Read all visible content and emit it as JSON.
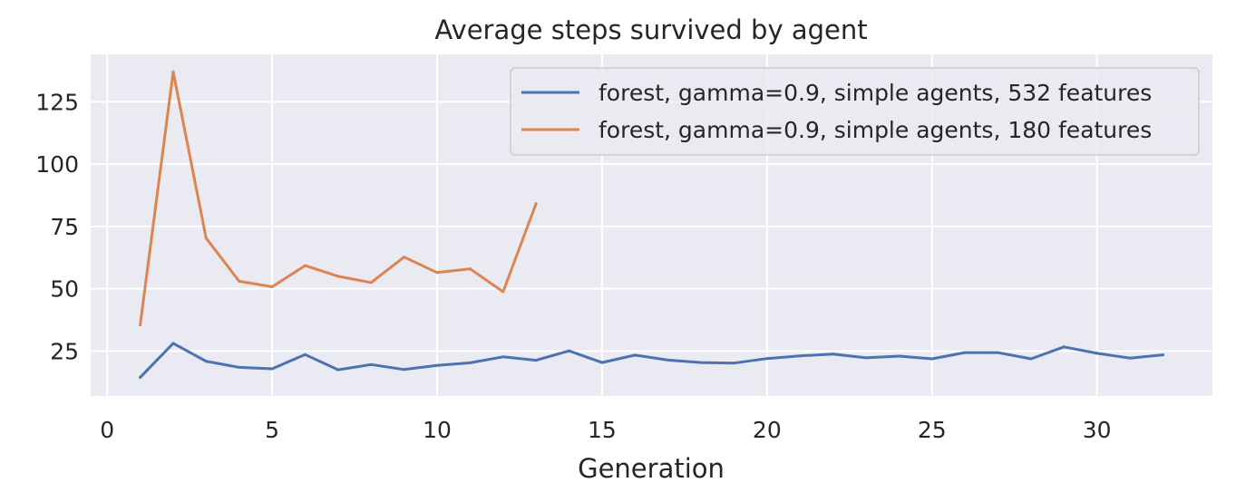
{
  "chart_data": {
    "type": "line",
    "title": "Average steps survived by agent",
    "xlabel": "Generation",
    "ylabel": "",
    "xlim": [
      -0.5,
      33.5
    ],
    "ylim": [
      7,
      144
    ],
    "xticks": [
      0,
      5,
      10,
      15,
      20,
      25,
      30
    ],
    "yticks": [
      25,
      50,
      75,
      100,
      125
    ],
    "grid": true,
    "legend_position": "top-right",
    "series": [
      {
        "name": "forest, gamma=0.9, simple agents, 532 features",
        "color": "#4c72b0",
        "x": [
          1,
          2,
          3,
          4,
          5,
          6,
          7,
          8,
          9,
          10,
          11,
          12,
          13,
          14,
          15,
          16,
          17,
          18,
          19,
          20,
          21,
          22,
          23,
          24,
          25,
          26,
          27,
          28,
          29,
          30,
          31,
          32
        ],
        "values": [
          14.5,
          28.1,
          20.9,
          18.5,
          17.9,
          23.6,
          17.5,
          19.6,
          17.6,
          19.3,
          20.3,
          22.7,
          21.3,
          25.1,
          20.4,
          23.4,
          21.4,
          20.4,
          20.2,
          22.0,
          23.1,
          23.8,
          22.3,
          23.0,
          21.9,
          24.4,
          24.4,
          21.9,
          26.7,
          24.1,
          22.2,
          23.5
        ]
      },
      {
        "name": "forest, gamma=0.9, simple agents, 180 features",
        "color": "#dd8452",
        "x": [
          1,
          2,
          3,
          4,
          5,
          6,
          7,
          8,
          9,
          10,
          11,
          12,
          13
        ],
        "values": [
          35.5,
          137.0,
          70.3,
          53.0,
          50.8,
          59.3,
          55.0,
          52.5,
          62.7,
          56.5,
          58.0,
          48.8,
          84.2
        ]
      }
    ]
  }
}
